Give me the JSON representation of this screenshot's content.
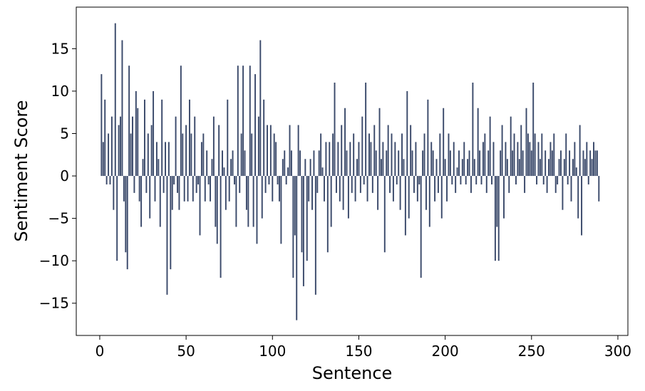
{
  "chart_data": {
    "type": "bar",
    "x_label": "Sentence",
    "y_label": "Sentiment Score",
    "color": "#3b4a6b",
    "x": [
      0,
      1,
      2,
      3,
      4,
      5,
      6,
      7,
      8,
      9,
      10,
      11,
      12,
      13,
      14,
      15,
      16,
      17,
      18,
      19,
      20,
      21,
      22,
      23,
      24,
      25,
      26,
      27,
      28,
      29,
      30,
      31,
      32,
      33,
      34,
      35,
      36,
      37,
      38,
      39,
      40,
      41,
      42,
      43,
      44,
      45,
      46,
      47,
      48,
      49,
      50,
      51,
      52,
      53,
      54,
      55,
      56,
      57,
      58,
      59,
      60,
      61,
      62,
      63,
      64,
      65,
      66,
      67,
      68,
      69,
      70,
      71,
      72,
      73,
      74,
      75,
      76,
      77,
      78,
      79,
      80,
      81,
      82,
      83,
      84,
      85,
      86,
      87,
      88,
      89,
      90,
      91,
      92,
      93,
      94,
      95,
      96,
      97,
      98,
      99,
      100,
      101,
      102,
      103,
      104,
      105,
      106,
      107,
      108,
      109,
      110,
      111,
      112,
      113,
      114,
      115,
      116,
      117,
      118,
      119,
      120,
      121,
      122,
      123,
      124,
      125,
      126,
      127,
      128,
      129,
      130,
      131,
      132,
      133,
      134,
      135,
      136,
      137,
      138,
      139,
      140,
      141,
      142,
      143,
      144,
      145,
      146,
      147,
      148,
      149,
      150,
      151,
      152,
      153,
      154,
      155,
      156,
      157,
      158,
      159,
      160,
      161,
      162,
      163,
      164,
      165,
      166,
      167,
      168,
      169,
      170,
      171,
      172,
      173,
      174,
      175,
      176,
      177,
      178,
      179,
      180,
      181,
      182,
      183,
      184,
      185,
      186,
      187,
      188,
      189,
      190,
      191,
      192,
      193,
      194,
      195,
      196,
      197,
      198,
      199,
      200,
      201,
      202,
      203,
      204,
      205,
      206,
      207,
      208,
      209,
      210,
      211,
      212,
      213,
      214,
      215,
      216,
      217,
      218,
      219,
      220,
      221,
      222,
      223,
      224,
      225,
      226,
      227,
      228,
      229,
      230,
      231,
      232,
      233,
      234,
      235,
      236,
      237,
      238,
      239,
      240,
      241,
      242,
      243,
      244,
      245,
      246,
      247,
      248,
      249,
      250,
      251,
      252,
      253,
      254,
      255,
      256,
      257,
      258,
      259,
      260,
      261,
      262,
      263,
      264,
      265,
      266,
      267,
      268,
      269,
      270,
      271,
      272,
      273,
      274,
      275,
      276,
      277,
      278,
      279,
      280,
      281,
      282,
      283,
      284,
      285,
      286,
      287,
      288,
      289
    ],
    "values": [
      0,
      12,
      4,
      9,
      -1,
      5,
      -1,
      7,
      -4,
      18,
      -10,
      6,
      7,
      16,
      -3,
      -9,
      -11,
      13,
      5,
      7,
      -2,
      10,
      8,
      -3,
      -6,
      2,
      9,
      -2,
      5,
      -5,
      6,
      10,
      -3,
      4,
      2,
      -6,
      9,
      -2,
      4,
      -14,
      4,
      -11,
      -4,
      -1,
      7,
      -2,
      -4,
      13,
      5,
      -3,
      6,
      -3,
      9,
      5,
      -3,
      7,
      -2,
      -1,
      -7,
      4,
      5,
      -3,
      3,
      -1,
      -3,
      2,
      7,
      -6,
      -8,
      6,
      -12,
      3,
      1,
      -4,
      9,
      -3,
      2,
      3,
      -1,
      -6,
      13,
      -2,
      5,
      13,
      3,
      -4,
      -6,
      13,
      5,
      -6,
      12,
      -8,
      7,
      16,
      -5,
      9,
      -2,
      6,
      -1,
      6,
      -3,
      5,
      4,
      -1,
      -3,
      -8,
      2,
      3,
      -1,
      1,
      6,
      3,
      -12,
      -7,
      -17,
      6,
      3,
      -9,
      -13,
      2,
      -10,
      -3,
      2,
      -4,
      3,
      -14,
      -2,
      3,
      5,
      1,
      -3,
      4,
      -9,
      4,
      -6,
      5,
      11,
      -2,
      4,
      -3,
      6,
      -4,
      8,
      3,
      -5,
      4,
      -2,
      5,
      -3,
      2,
      4,
      -2,
      7,
      -1,
      11,
      -3,
      5,
      4,
      -2,
      6,
      3,
      -4,
      8,
      2,
      4,
      -9,
      3,
      6,
      -2,
      5,
      -3,
      4,
      -1,
      3,
      -4,
      5,
      2,
      -7,
      10,
      -5,
      6,
      3,
      -2,
      4,
      -3,
      -1,
      -12,
      3,
      5,
      -4,
      9,
      -6,
      4,
      3,
      -3,
      2,
      -2,
      5,
      -5,
      8,
      2,
      -3,
      5,
      3,
      -1,
      4,
      -2,
      1,
      3,
      -1,
      2,
      4,
      -1,
      2,
      3,
      -2,
      11,
      2,
      -1,
      8,
      3,
      -1,
      4,
      5,
      -2,
      3,
      7,
      -1,
      4,
      -10,
      -6,
      -10,
      3,
      6,
      -5,
      4,
      2,
      -2,
      7,
      3,
      5,
      -1,
      4,
      2,
      6,
      3,
      -2,
      8,
      5,
      4,
      3,
      11,
      5,
      -1,
      4,
      2,
      5,
      -1,
      3,
      -2,
      2,
      4,
      3,
      5,
      -2,
      -1,
      2,
      3,
      -4,
      2,
      5,
      -1,
      3,
      -3,
      2,
      4,
      1,
      -5,
      6,
      -7,
      3,
      2,
      4,
      -1,
      3,
      2,
      4,
      3,
      3,
      -3
    ],
    "xlim": [
      -13.6,
      305.8
    ],
    "ylim": [
      -18.8,
      19.9
    ],
    "xticks": [
      0,
      50,
      100,
      150,
      200,
      250,
      300
    ],
    "yticks": [
      {
        "value": -15,
        "label": "−15"
      },
      {
        "value": -10,
        "label": "−10"
      },
      {
        "value": -5,
        "label": "−5"
      },
      0,
      5,
      10,
      15
    ]
  }
}
